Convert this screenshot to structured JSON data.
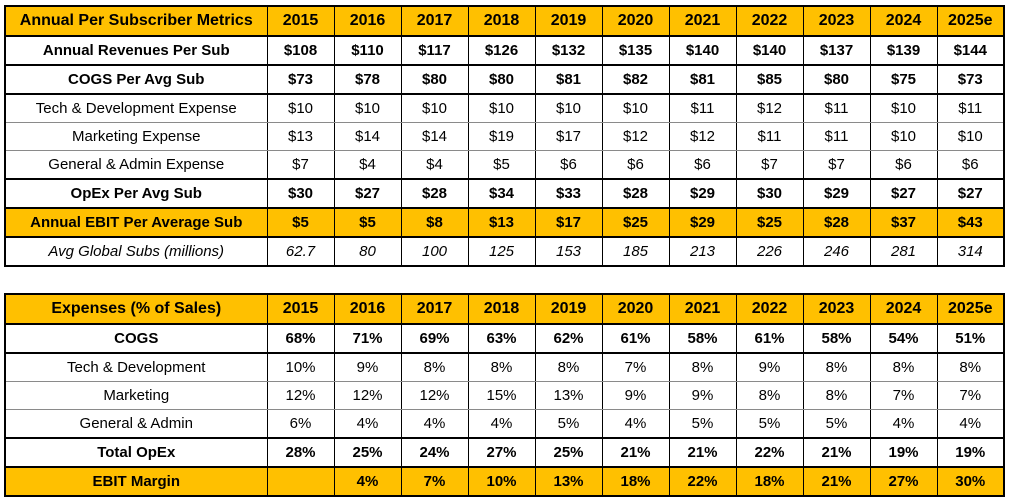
{
  "colors": {
    "accent": "#FFC000",
    "border": "#000000",
    "text": "#000000",
    "row_background": "#FFFFFF"
  },
  "chart_data": [
    {
      "type": "table",
      "title": "Annual Per Subscriber Metrics",
      "columns": [
        "2015",
        "2016",
        "2017",
        "2018",
        "2019",
        "2020",
        "2021",
        "2022",
        "2023",
        "2024",
        "2025e"
      ],
      "rows": [
        {
          "label": "Annual Revenues Per Sub",
          "style": "bold",
          "values": [
            "$108",
            "$110",
            "$117",
            "$126",
            "$132",
            "$135",
            "$140",
            "$140",
            "$137",
            "$139",
            "$144"
          ]
        },
        {
          "label": "COGS Per Avg Sub",
          "style": "bold",
          "values": [
            "$73",
            "$78",
            "$80",
            "$80",
            "$81",
            "$82",
            "$81",
            "$85",
            "$80",
            "$75",
            "$73"
          ]
        },
        {
          "label": "Tech & Development Expense",
          "style": "regular",
          "values": [
            "$10",
            "$10",
            "$10",
            "$10",
            "$10",
            "$10",
            "$11",
            "$12",
            "$11",
            "$10",
            "$11"
          ]
        },
        {
          "label": "Marketing Expense",
          "style": "regular",
          "values": [
            "$13",
            "$14",
            "$14",
            "$19",
            "$17",
            "$12",
            "$12",
            "$11",
            "$11",
            "$10",
            "$10"
          ]
        },
        {
          "label": "General & Admin Expense",
          "style": "regular",
          "values": [
            "$7",
            "$4",
            "$4",
            "$5",
            "$6",
            "$6",
            "$6",
            "$7",
            "$7",
            "$6",
            "$6"
          ]
        },
        {
          "label": "OpEx Per Avg Sub",
          "style": "bold",
          "values": [
            "$30",
            "$27",
            "$28",
            "$34",
            "$33",
            "$28",
            "$29",
            "$30",
            "$29",
            "$27",
            "$27"
          ]
        },
        {
          "label": "Annual EBIT Per Average Sub",
          "style": "bold-highlight",
          "values": [
            "$5",
            "$5",
            "$8",
            "$13",
            "$17",
            "$25",
            "$29",
            "$25",
            "$28",
            "$37",
            "$43"
          ]
        },
        {
          "label": "Avg Global Subs (millions)",
          "style": "italic",
          "values": [
            "62.7",
            "80",
            "100",
            "125",
            "153",
            "185",
            "213",
            "226",
            "246",
            "281",
            "314"
          ]
        }
      ]
    },
    {
      "type": "table",
      "title": "Expenses (% of Sales)",
      "columns": [
        "2015",
        "2016",
        "2017",
        "2018",
        "2019",
        "2020",
        "2021",
        "2022",
        "2023",
        "2024",
        "2025e"
      ],
      "rows": [
        {
          "label": "COGS",
          "style": "bold",
          "values": [
            "68%",
            "71%",
            "69%",
            "63%",
            "62%",
            "61%",
            "58%",
            "61%",
            "58%",
            "54%",
            "51%"
          ]
        },
        {
          "label": "Tech & Development",
          "style": "regular",
          "values": [
            "10%",
            "9%",
            "8%",
            "8%",
            "8%",
            "7%",
            "8%",
            "9%",
            "8%",
            "8%",
            "8%"
          ]
        },
        {
          "label": "Marketing",
          "style": "regular",
          "values": [
            "12%",
            "12%",
            "12%",
            "15%",
            "13%",
            "9%",
            "9%",
            "8%",
            "8%",
            "7%",
            "7%"
          ]
        },
        {
          "label": "General & Admin",
          "style": "regular",
          "values": [
            "6%",
            "4%",
            "4%",
            "4%",
            "5%",
            "4%",
            "5%",
            "5%",
            "5%",
            "4%",
            "4%"
          ]
        },
        {
          "label": "Total OpEx",
          "style": "bold",
          "values": [
            "28%",
            "25%",
            "24%",
            "27%",
            "25%",
            "21%",
            "21%",
            "22%",
            "21%",
            "19%",
            "19%"
          ]
        },
        {
          "label": "EBIT Margin",
          "style": "bold-highlight",
          "values": [
            "",
            "4%",
            "7%",
            "10%",
            "13%",
            "18%",
            "22%",
            "18%",
            "21%",
            "27%",
            "30%"
          ]
        }
      ]
    }
  ]
}
